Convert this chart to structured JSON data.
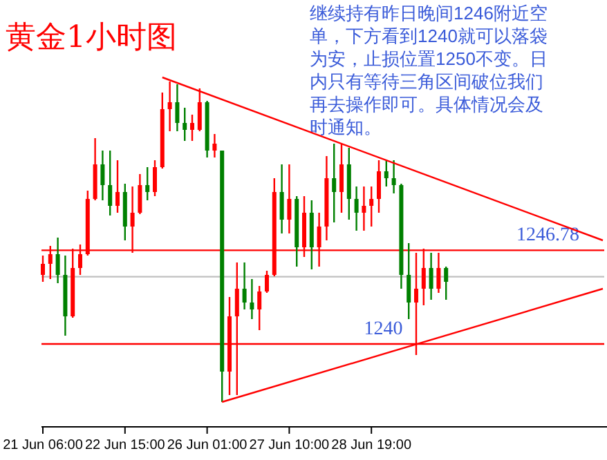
{
  "chart_data": {
    "type": "candlestick",
    "title": "黄金1小时图",
    "annotations": [
      "继续持有昨日晚间1246附近空单，下方看到1240就可以落袋为安，止损位置1250不变。日内只有等待三角区间破位我们再去操作即可。具体情况会及时通知。"
    ],
    "categories": [
      "21 Jun 06:00",
      null,
      null,
      null,
      null,
      null,
      null,
      null,
      null,
      null,
      null,
      "22 Jun 15:00",
      null,
      null,
      null,
      null,
      null,
      null,
      null,
      null,
      null,
      null,
      "26 Jun 01:00",
      null,
      null,
      null,
      null,
      null,
      null,
      null,
      null,
      null,
      null,
      "27 Jun 10:00",
      null,
      null,
      null,
      null,
      null,
      null,
      null,
      null,
      null,
      null,
      "28 Jun 19:00",
      null,
      null,
      null,
      null,
      null,
      null,
      null,
      null,
      null,
      null,
      null,
      null,
      null,
      null,
      null,
      null,
      null,
      null,
      null,
      null,
      null,
      null,
      null,
      null,
      null,
      null,
      null,
      null,
      null,
      null,
      null
    ],
    "ylim": [
      1234,
      1264.7
    ],
    "tick_labels": "x",
    "series": [
      {
        "type": "candlestick",
        "ohlc": [
          [
            1245.0,
            1246.4,
            1244.5,
            1245.8
          ],
          [
            1245.8,
            1247.1,
            1244.7,
            1246.5
          ],
          [
            1246.5,
            1247.7,
            1244.4,
            1245.0
          ],
          [
            1245.0,
            1246.4,
            1240.6,
            1242.0
          ],
          [
            1242.0,
            1246.9,
            1241.9,
            1245.5
          ],
          [
            1245.5,
            1247.2,
            1245.0,
            1246.5
          ],
          [
            1246.5,
            1251.1,
            1246.4,
            1250.5
          ],
          [
            1250.5,
            1254.9,
            1250.4,
            1253.0
          ],
          [
            1253.0,
            1254.0,
            1250.4,
            1251.5
          ],
          [
            1251.5,
            1254.0,
            1249.3,
            1250.0
          ],
          [
            1250.0,
            1253.3,
            1249.5,
            1251.0
          ],
          [
            1251.0,
            1251.6,
            1247.5,
            1248.5
          ],
          [
            1248.5,
            1251.4,
            1246.6,
            1249.5
          ],
          [
            1249.5,
            1252.3,
            1249.4,
            1251.5
          ],
          [
            1251.5,
            1252.8,
            1250.4,
            1251.0
          ],
          [
            1251.0,
            1253.3,
            1250.7,
            1252.8
          ],
          [
            1252.8,
            1258.2,
            1252.7,
            1257.0
          ],
          [
            1257.0,
            1259.0,
            1255.4,
            1257.5
          ],
          [
            1257.5,
            1258.8,
            1255.4,
            1256.0
          ],
          [
            1256.0,
            1257.1,
            1254.7,
            1255.5
          ],
          [
            1255.5,
            1256.6,
            1254.7,
            1256.0
          ],
          [
            1255.5,
            1258.5,
            1255.4,
            1257.5
          ],
          [
            1257.5,
            1257.6,
            1253.5,
            1254.0
          ],
          [
            1254.0,
            1255.2,
            1253.5,
            1254.5
          ],
          [
            1254.0,
            1254.0,
            1235.8,
            1238.0
          ],
          [
            1238.0,
            1243.4,
            1236.3,
            1242.0
          ],
          [
            1242.0,
            1245.9,
            1236.3,
            1244.0
          ],
          [
            1244.0,
            1245.9,
            1242.5,
            1243.0
          ],
          [
            1243.0,
            1244.7,
            1241.8,
            1242.5
          ],
          [
            1242.5,
            1244.2,
            1241.0,
            1243.8
          ],
          [
            1243.8,
            1245.3,
            1243.7,
            1245.0
          ],
          [
            1245.0,
            1252.0,
            1244.9,
            1251.0
          ],
          [
            1251.0,
            1253.0,
            1248.0,
            1249.0
          ],
          [
            1249.0,
            1253.0,
            1248.0,
            1250.5
          ],
          [
            1250.5,
            1250.7,
            1245.6,
            1247.0
          ],
          [
            1247.0,
            1250.7,
            1246.3,
            1249.5
          ],
          [
            1249.5,
            1250.4,
            1245.4,
            1247.0
          ],
          [
            1247.0,
            1249.5,
            1245.6,
            1248.5
          ],
          [
            1248.5,
            1253.6,
            1247.5,
            1252.0
          ],
          [
            1252.0,
            1254.5,
            1248.8,
            1251.0
          ],
          [
            1251.0,
            1254.5,
            1249.5,
            1253.0
          ],
          [
            1253.0,
            1254.2,
            1249.0,
            1250.5
          ],
          [
            1250.5,
            1251.4,
            1248.2,
            1249.5
          ],
          [
            1249.5,
            1251.4,
            1248.2,
            1250.0
          ],
          [
            1250.0,
            1251.4,
            1248.5,
            1250.5
          ],
          [
            1250.5,
            1253.3,
            1249.5,
            1252.5
          ],
          [
            1252.5,
            1253.3,
            1251.4,
            1252.0
          ],
          [
            1252.0,
            1253.3,
            1250.9,
            1251.5
          ],
          [
            1251.5,
            1251.6,
            1244.0,
            1245.0
          ],
          [
            1245.0,
            1247.3,
            1241.8,
            1243.0
          ],
          [
            1243.0,
            1246.6,
            1239.2,
            1244.0
          ],
          [
            1244.0,
            1246.9,
            1242.8,
            1245.5
          ],
          [
            1245.5,
            1246.6,
            1243.2,
            1244.0
          ],
          [
            1244.0,
            1246.6,
            1243.7,
            1245.5
          ],
          [
            1245.5,
            1245.6,
            1243.2,
            1244.5
          ],
          null,
          null,
          null,
          null,
          null,
          null,
          null,
          null,
          null,
          null,
          null,
          null,
          null,
          null,
          null,
          null,
          null,
          null,
          null,
          null,
          null
        ],
        "colors": [
          "#ff0000",
          "#ff0000",
          "#008000",
          "#008000",
          "#ff0000",
          "#ff0000",
          "#ff0000",
          "#ff0000",
          "#008000",
          "#008000",
          "#ff0000",
          "#008000",
          "#ff0000",
          "#ff0000",
          "#008000",
          "#ff0000",
          "#ff0000",
          "#ff0000",
          "#008000",
          "#008000",
          "#ff0000",
          "#ff0000",
          "#008000",
          "#ff0000",
          "#008000",
          "#ff0000",
          "#ff0000",
          "#008000",
          "#008000",
          "#ff0000",
          "#ff0000",
          "#ff0000",
          "#008000",
          "#ff0000",
          "#008000",
          "#ff0000",
          "#008000",
          "#ff0000",
          "#ff0000",
          "#008000",
          "#ff0000",
          "#008000",
          "#008000",
          "#ff0000",
          "#ff0000",
          "#ff0000",
          "#008000",
          "#008000",
          "#008000",
          "#008000",
          "#ff0000",
          "#ff0000",
          "#008000",
          "#ff0000",
          "#008000",
          null,
          null,
          null,
          null,
          null,
          null,
          null,
          null,
          null,
          null,
          null,
          null,
          null,
          null,
          null,
          null,
          null,
          null,
          null,
          null,
          null
        ]
      },
      {
        "type": "line",
        "color": "#ff0000",
        "values": [
          null,
          null,
          null,
          null,
          null,
          null,
          null,
          null,
          null,
          null,
          null,
          null,
          null,
          null,
          null,
          null,
          1259.3,
          null,
          null,
          null,
          null,
          null,
          null,
          null,
          null,
          null,
          null,
          null,
          null,
          null,
          null,
          null,
          null,
          null,
          null,
          null,
          null,
          null,
          null,
          null,
          null,
          null,
          null,
          null,
          null,
          null,
          null,
          null,
          null,
          null,
          null,
          null,
          null,
          null,
          null,
          null,
          null,
          null,
          null,
          null,
          null,
          null,
          null,
          null,
          null,
          null,
          null,
          null,
          null,
          null,
          null,
          null,
          null,
          null,
          null,
          1247.5
        ]
      },
      {
        "type": "line",
        "color": "#ff0000",
        "values": [
          null,
          null,
          null,
          null,
          null,
          null,
          null,
          null,
          null,
          null,
          null,
          null,
          null,
          null,
          null,
          null,
          null,
          null,
          null,
          null,
          null,
          null,
          null,
          null,
          1235.8,
          null,
          null,
          null,
          null,
          null,
          null,
          null,
          null,
          null,
          null,
          null,
          null,
          null,
          null,
          null,
          null,
          null,
          null,
          null,
          null,
          null,
          null,
          null,
          null,
          null,
          null,
          null,
          null,
          null,
          null,
          null,
          null,
          null,
          null,
          null,
          null,
          null,
          null,
          null,
          null,
          null,
          null,
          null,
          null,
          null,
          null,
          null,
          null,
          null,
          null,
          1244.0
        ]
      }
    ],
    "ref_lines": [
      {
        "axis": "y",
        "value": 1246.78,
        "label": "1246.78",
        "color": "#ff0000"
      },
      {
        "axis": "y",
        "value": 1240,
        "label": "1240",
        "color": "#ff0000"
      },
      {
        "axis": "y",
        "value": 1244.87,
        "label": null,
        "color": "#c0c0c0"
      }
    ]
  }
}
